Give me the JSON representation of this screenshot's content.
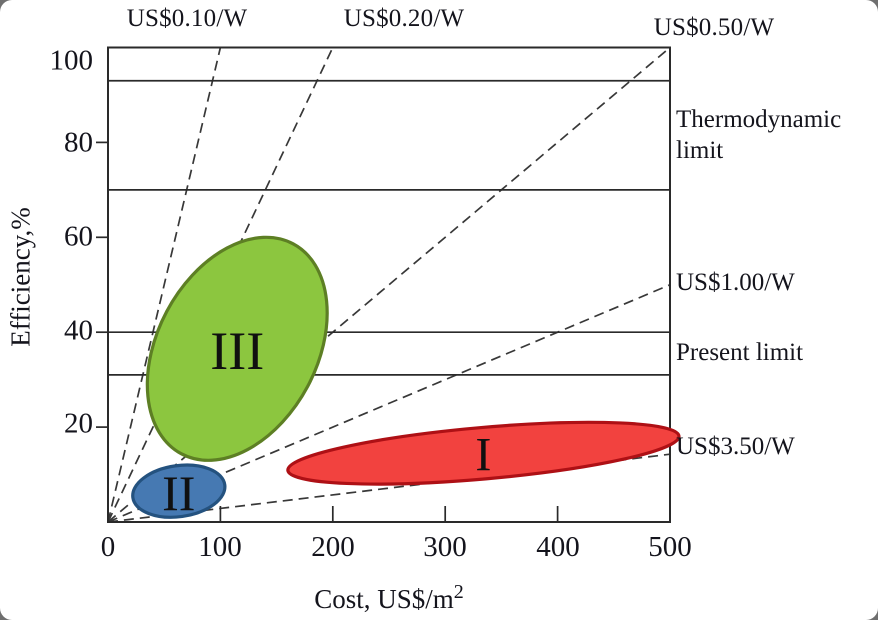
{
  "figure": {
    "background_color": "#6f6f6f",
    "page_color": "#ffffff"
  },
  "chart_data": {
    "type": "area",
    "description": "Efficiency vs cost regions for three generations of solar cell technology (I, II, III) with dashed cost-per-watt guide lines from the origin and horizontal efficiency limit lines",
    "xlabel_base": "Cost, US$/m",
    "xlabel_sup": "2",
    "ylabel": "Efficiency,%",
    "xlim": [
      0,
      500
    ],
    "ylim": [
      0,
      100
    ],
    "x_ticks": [
      "0",
      "100",
      "200",
      "300",
      "400",
      "500"
    ],
    "y_ticks": [
      "100",
      "80",
      "60",
      "40",
      "20"
    ],
    "grid": "off",
    "frame_color": "#2a2a2a",
    "dash_color": "#383838",
    "cost_per_watt_lines": [
      {
        "label": "US$0.10/W",
        "usd_per_watt": 0.1
      },
      {
        "label": "US$0.20/W",
        "usd_per_watt": 0.2
      },
      {
        "label": "US$0.50/W",
        "usd_per_watt": 0.5
      },
      {
        "label": "US$1.00/W",
        "usd_per_watt": 1.0
      },
      {
        "label": "US$3.50/W",
        "usd_per_watt": 3.5
      }
    ],
    "limit_lines": [
      {
        "label_line1": "Thermodynamic",
        "label_line2": "limit",
        "efficiencies": [
          93,
          70
        ]
      },
      {
        "label_line1": "Present limit",
        "label_line2": "",
        "efficiencies": [
          40,
          31
        ]
      }
    ],
    "regions": [
      {
        "label": "III",
        "name": "third-generation",
        "fill": "#8cc63f",
        "stroke": "#5d7f24",
        "cost_range": [
          35,
          195
        ],
        "efficiency_range": [
          13,
          60
        ],
        "tilt_deg": 62
      },
      {
        "label": "II",
        "name": "second-generation",
        "fill": "#4679b2",
        "stroke": "#24527f",
        "cost_range": [
          22,
          104
        ],
        "efficiency_range": [
          1,
          12
        ],
        "tilt_deg": 8
      },
      {
        "label": "I",
        "name": "first-generation",
        "fill": "#f2423f",
        "stroke": "#ae1015",
        "cost_range": [
          160,
          508
        ],
        "efficiency_range": [
          8,
          21
        ],
        "tilt_deg": 5
      }
    ]
  }
}
